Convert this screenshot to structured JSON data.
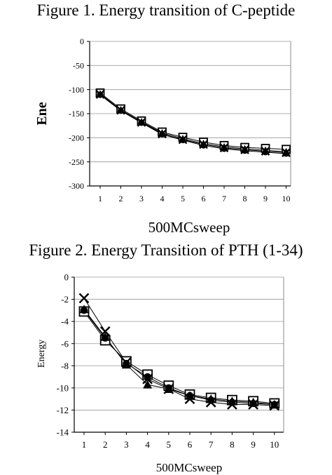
{
  "chart_data": [
    {
      "type": "line",
      "title": "Figure 1. Energy transition of C-peptide",
      "xlabel": "500MCsweep",
      "ylabel": "Ene",
      "categories": [
        1,
        2,
        3,
        4,
        5,
        6,
        7,
        8,
        9,
        10
      ],
      "ylim": [
        -300,
        0
      ],
      "yticks": [
        0,
        -50,
        -100,
        -150,
        -200,
        -250,
        -300
      ],
      "grid": "horizontal",
      "series": [
        {
          "marker": "square",
          "values": [
            -107,
            -140,
            -165,
            -188,
            -199,
            -209,
            -216,
            -220,
            -222,
            -224
          ]
        },
        {
          "marker": "triangle",
          "values": [
            -109,
            -142,
            -167,
            -190,
            -202,
            -212,
            -219,
            -223,
            -226,
            -229
          ]
        },
        {
          "marker": "x",
          "values": [
            -110,
            -143,
            -168,
            -192,
            -204,
            -214,
            -221,
            -225,
            -228,
            -231
          ]
        },
        {
          "marker": "circle",
          "values": [
            -111,
            -144,
            -169,
            -193,
            -205,
            -216,
            -223,
            -227,
            -230,
            -233
          ]
        }
      ]
    },
    {
      "type": "line",
      "title": "Figure 2. Energy Transition of PTH (1-34)",
      "xlabel": "500MCsweep",
      "ylabel": "Energy",
      "categories": [
        1,
        2,
        3,
        4,
        5,
        6,
        7,
        8,
        9,
        10
      ],
      "ylim": [
        -14,
        0
      ],
      "yticks": [
        0,
        -2,
        -4,
        -6,
        -8,
        -10,
        -12,
        -14
      ],
      "grid": "horizontal",
      "series": [
        {
          "marker": "square",
          "values": [
            -3.1,
            -5.7,
            -7.6,
            -8.8,
            -9.8,
            -10.6,
            -10.9,
            -11.1,
            -11.2,
            -11.4
          ]
        },
        {
          "marker": "triangle",
          "values": [
            -2.9,
            -5.4,
            -7.9,
            -9.7,
            -10.1,
            -10.7,
            -11.0,
            -11.2,
            -11.3,
            -11.5
          ]
        },
        {
          "marker": "x",
          "values": [
            -1.9,
            -4.9,
            -7.7,
            -9.2,
            -10.1,
            -11.0,
            -11.3,
            -11.5,
            -11.5,
            -11.6
          ]
        },
        {
          "marker": "circle",
          "values": [
            -3.0,
            -5.5,
            -7.8,
            -9.0,
            -10.0,
            -10.7,
            -11.1,
            -11.3,
            -11.4,
            -11.5
          ]
        }
      ]
    }
  ]
}
